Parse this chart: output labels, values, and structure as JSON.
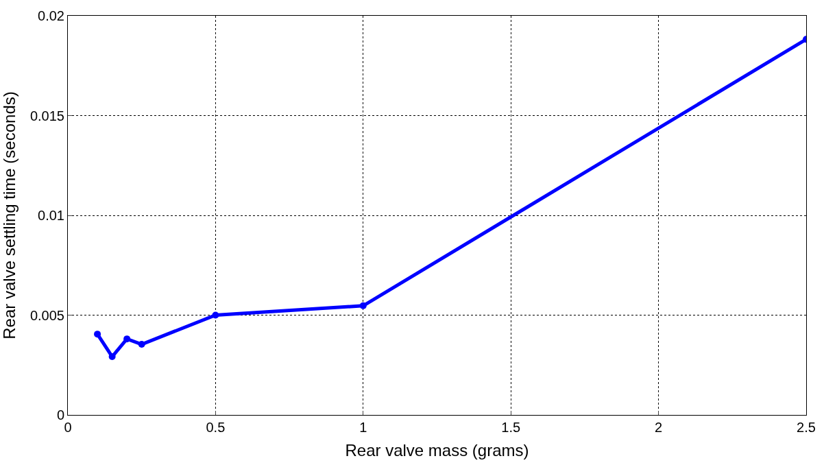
{
  "chart_data": {
    "type": "line",
    "xlabel": "Rear valve mass (grams)",
    "ylabel": "Rear valve settling time (seconds)",
    "x": [
      0.1,
      0.15,
      0.2,
      0.25,
      0.5,
      1,
      2.5
    ],
    "series": [
      {
        "color": "#0000ff",
        "values": [
          0.00405,
          0.00292,
          0.00381,
          0.00354,
          0.005,
          0.00547,
          0.01882
        ]
      }
    ],
    "xlim": [
      0,
      2.5
    ],
    "xticks": [
      0,
      0.5,
      1,
      1.5,
      2,
      2.5
    ],
    "ylim": [
      0,
      0.02
    ],
    "yticks": [
      0,
      0.005,
      0.01,
      0.015,
      0.02
    ],
    "grid": true,
    "marker": "circle",
    "line_style": "solid",
    "legend": false
  }
}
